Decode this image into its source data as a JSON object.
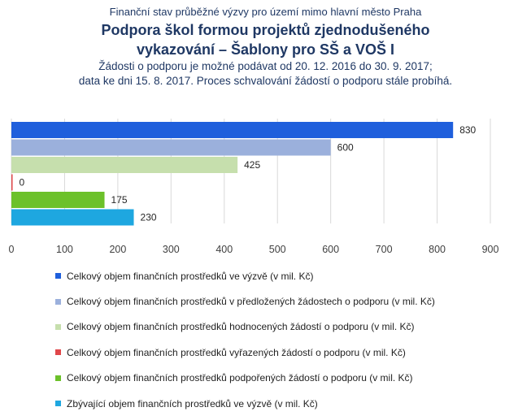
{
  "header": {
    "supertitle": "Finanční stav průběžné výzvy pro území mimo hlavní město Praha",
    "title_line1": "Podpora škol formou projektů zjednodušeného",
    "title_line2": "vykazování – Šablony pro SŠ a VOŠ I",
    "subtitle_line1": "Žádosti o podporu je možné podávat od 20. 12. 2016 do 30. 9. 2017;",
    "subtitle_line2": "data ke dni 15. 8. 2017. Proces schvalování žádostí o podporu stále probíhá."
  },
  "chart_data": {
    "type": "bar",
    "orientation": "horizontal",
    "xlim": [
      0,
      900
    ],
    "x_ticks": [
      0,
      100,
      200,
      300,
      400,
      500,
      600,
      700,
      800,
      900
    ],
    "grid": true,
    "legend_position": "bottom",
    "series": [
      {
        "name": "Celkový objem finančních prostředků ve výzvě (v mil. Kč)",
        "value": 830,
        "label": "830",
        "color": "#1f5fdc"
      },
      {
        "name": "Celkový objem finančních prostředků v předložených žádostech o podporu (v mil. Kč)",
        "value": 600,
        "label": "600",
        "color": "#9bb0dc"
      },
      {
        "name": "Celkový objem finančních prostředků hodnocených žádostí o podporu (v mil. Kč)",
        "value": 425,
        "label": "425",
        "color": "#c6dfad"
      },
      {
        "name": "Celkový objem finančních prostředků vyřazených žádostí o podporu (v mil. Kč)",
        "value": 0,
        "label": "0",
        "color": "#e0474a"
      },
      {
        "name": "Celkový objem finančních prostředků podpořených žádostí o podporu (v mil. Kč)",
        "value": 175,
        "label": "175",
        "color": "#6cc12a"
      },
      {
        "name": "Zbývající objem finančních prostředků ve výzvě (v mil. Kč)",
        "value": 230,
        "label": "230",
        "color": "#1ea7e0"
      }
    ]
  }
}
